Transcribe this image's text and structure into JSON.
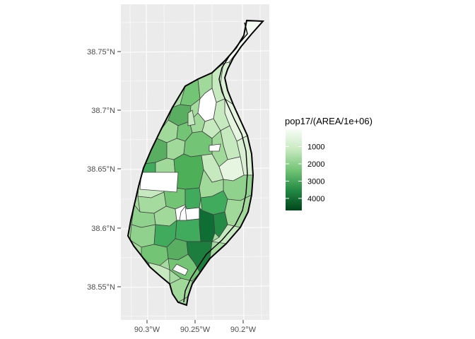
{
  "chart_data": {
    "type": "choropleth",
    "title": "",
    "xlabel": "",
    "ylabel": "",
    "x_ticks": [
      "90.3°W",
      "90.25°W",
      "90.2°W"
    ],
    "y_ticks": [
      "38.75°N",
      "38.7°N",
      "38.65°N",
      "38.6°N",
      "38.55°N"
    ],
    "legend": {
      "title": "pop17/(AREA/1e+06)",
      "labels": [
        "1000",
        "2000",
        "3000",
        "4000"
      ],
      "values": [
        1000,
        2000,
        3000,
        4000
      ],
      "range": [
        0,
        4700
      ],
      "low_color": "#f7fcf5",
      "high_color": "#00441b"
    },
    "grid": true,
    "panel_color": "#ebebeb",
    "no_data_color": "#ffffff"
  }
}
